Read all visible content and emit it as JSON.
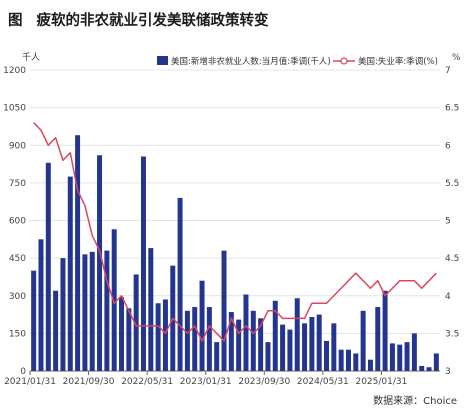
{
  "title": {
    "fig": "图",
    "text": "疲软的非农就业引发美联储政策转变"
  },
  "source": "数据来源：Choice",
  "chart_data": {
    "type": "bar+line",
    "left_unit": "千人",
    "right_unit": "%",
    "left_axis": {
      "min": 0,
      "max": 1200,
      "ticks": [
        "0",
        "150",
        "300",
        "450",
        "600",
        "750",
        "900",
        "1050",
        "1200"
      ]
    },
    "right_axis": {
      "min": 3,
      "max": 7,
      "ticks": [
        "3",
        "3.5",
        "4",
        "4.5",
        "5",
        "5.5",
        "6",
        "6.5",
        "7"
      ]
    },
    "x_tick_labels": [
      "2021/01/31",
      "2021/09/30",
      "2022/05/31",
      "2023/01/31",
      "2023/09/30",
      "2024/05/31",
      "2025/01/31"
    ],
    "x_tick_index": [
      0,
      8,
      16,
      24,
      32,
      40,
      48
    ],
    "legend_position": "top-right",
    "bar_color": "#23358f",
    "line_color": "#d9475f",
    "series": [
      {
        "name": "美国:新增非农就业人数:当月值:季调(千人)",
        "type": "bar",
        "values": [
          400,
          525,
          830,
          320,
          450,
          775,
          940,
          465,
          475,
          860,
          480,
          565,
          295,
          250,
          385,
          855,
          490,
          270,
          285,
          420,
          690,
          240,
          255,
          360,
          255,
          115,
          480,
          235,
          205,
          305,
          240,
          210,
          115,
          280,
          185,
          165,
          290,
          190,
          215,
          225,
          120,
          190,
          85,
          85,
          70,
          240,
          45,
          255,
          320,
          110,
          105,
          115,
          150,
          20,
          15,
          70
        ]
      },
      {
        "name": "美国:失业率:季调(%)",
        "type": "line",
        "values": [
          6.3,
          6.2,
          6.0,
          6.1,
          5.8,
          5.9,
          5.4,
          5.2,
          4.8,
          4.6,
          4.2,
          3.9,
          4.0,
          3.8,
          3.6,
          3.6,
          3.6,
          3.6,
          3.5,
          3.7,
          3.6,
          3.5,
          3.6,
          3.4,
          3.6,
          3.5,
          3.4,
          3.7,
          3.5,
          3.6,
          3.5,
          3.6,
          3.8,
          3.8,
          3.7,
          3.7,
          3.7,
          3.7,
          3.9,
          3.9,
          3.9,
          4.0,
          4.1,
          4.2,
          4.3,
          4.2,
          4.1,
          4.2,
          4.0,
          4.1,
          4.2,
          4.2,
          4.2,
          4.1,
          4.2,
          4.3
        ]
      }
    ]
  }
}
